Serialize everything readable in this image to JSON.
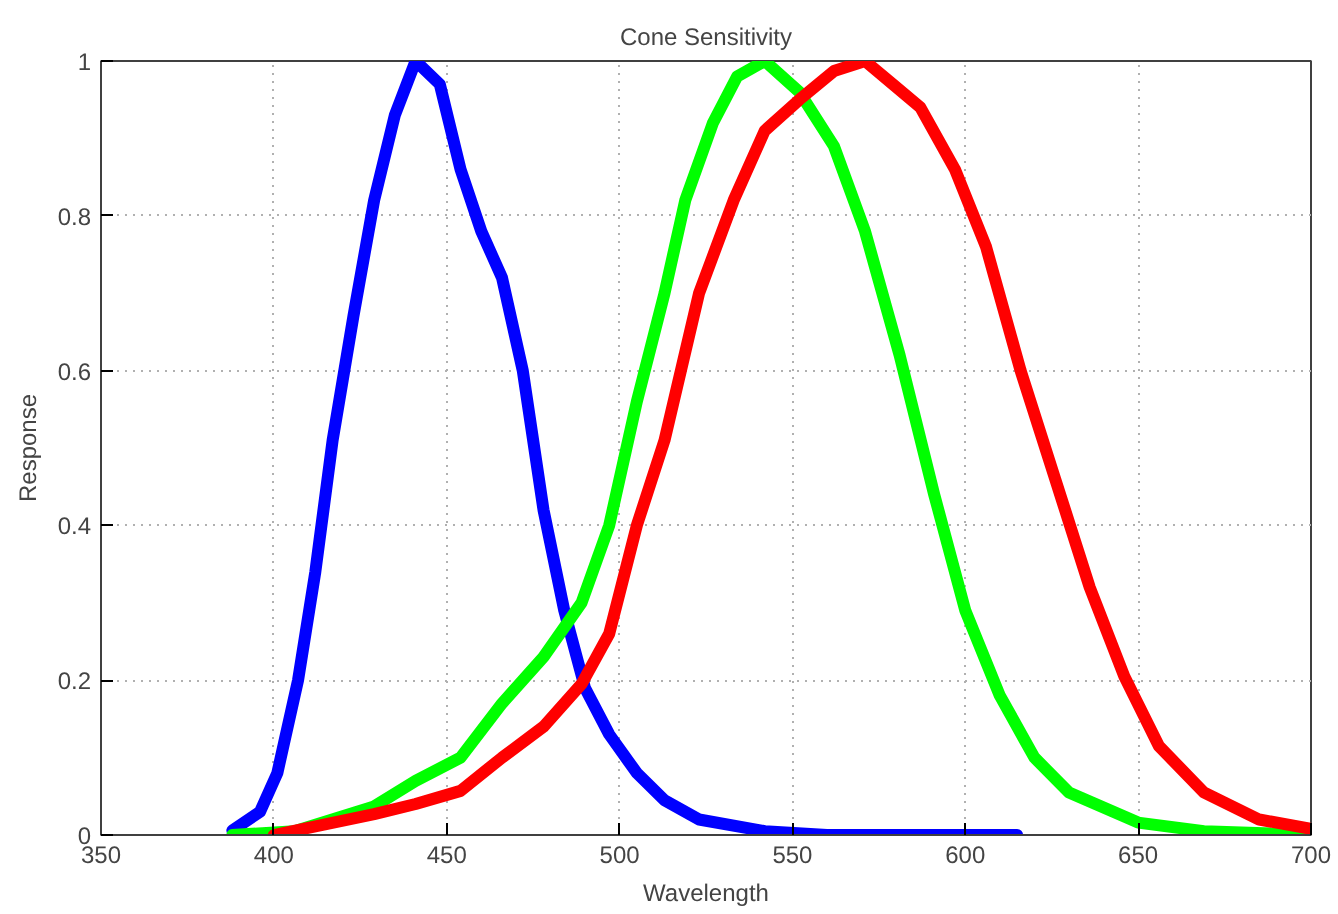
{
  "chart_data": {
    "type": "line",
    "title": "Cone Sensitivity",
    "xlabel": "Wavelength",
    "ylabel": "Response",
    "xlim": [
      350,
      700
    ],
    "ylim": [
      0,
      1
    ],
    "xticks": [
      350,
      400,
      450,
      500,
      550,
      600,
      650,
      700
    ],
    "yticks": [
      0,
      {
        "value": 0.2,
        "label": "0.2"
      },
      {
        "value": 0.4,
        "label": "0.4"
      },
      {
        "value": 0.6,
        "label": "0.6"
      },
      {
        "value": 0.8,
        "label": "0.8"
      },
      1
    ],
    "grid": true,
    "marker": "none",
    "series": [
      {
        "color": "#0000ff",
        "x": [
          388,
          396,
          401,
          407,
          412,
          417,
          423,
          429,
          435,
          441,
          448,
          454,
          460,
          466,
          472,
          478,
          484,
          490,
          497,
          505,
          513,
          523,
          542,
          560,
          615
        ],
        "values": [
          0.006,
          0.03,
          0.08,
          0.2,
          0.34,
          0.51,
          0.67,
          0.82,
          0.93,
          1.0,
          0.97,
          0.86,
          0.78,
          0.72,
          0.6,
          0.42,
          0.29,
          0.19,
          0.13,
          0.08,
          0.045,
          0.02,
          0.005,
          0,
          0
        ]
      },
      {
        "color": "#00ff00",
        "x": [
          388,
          406,
          429,
          441,
          454,
          466,
          478,
          489,
          497,
          505,
          513,
          519,
          527,
          534,
          542,
          552,
          562,
          571,
          581,
          591,
          600,
          610,
          620,
          630,
          650,
          669,
          700
        ],
        "values": [
          0,
          0.005,
          0.037,
          0.07,
          0.1,
          0.17,
          0.23,
          0.3,
          0.4,
          0.56,
          0.7,
          0.82,
          0.92,
          0.98,
          1.0,
          0.96,
          0.89,
          0.78,
          0.62,
          0.44,
          0.29,
          0.18,
          0.1,
          0.055,
          0.016,
          0.005,
          0
        ]
      },
      {
        "color": "#ff0000",
        "x": [
          400,
          429,
          441,
          454,
          466,
          478,
          489,
          497,
          505,
          513,
          523,
          533,
          542,
          552,
          562,
          571,
          579,
          587,
          597,
          606,
          616,
          626,
          636,
          646,
          656,
          669,
          685,
          700
        ],
        "values": [
          0,
          0.027,
          0.04,
          0.057,
          0.1,
          0.14,
          0.195,
          0.26,
          0.4,
          0.51,
          0.7,
          0.82,
          0.91,
          0.95,
          0.987,
          1.0,
          0.97,
          0.94,
          0.86,
          0.76,
          0.6,
          0.46,
          0.32,
          0.205,
          0.115,
          0.055,
          0.02,
          0.008
        ]
      }
    ]
  }
}
